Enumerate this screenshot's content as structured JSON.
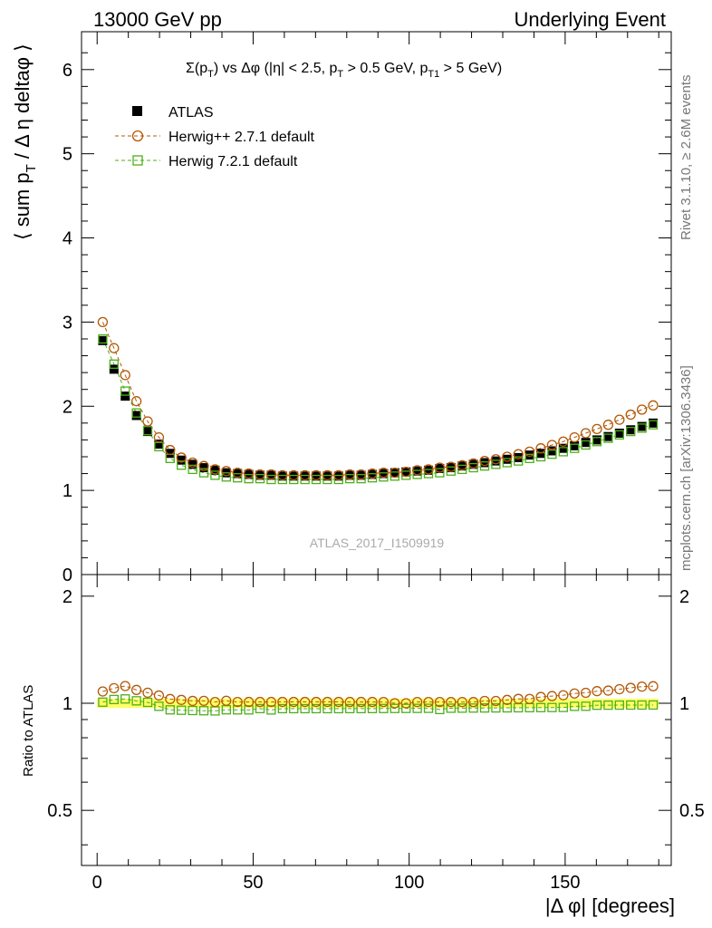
{
  "header": {
    "left": "13000 GeV pp",
    "right": "Underlying Event"
  },
  "side_labels": {
    "rivet": "Rivet 3.1.10, ≥ 2.6M events",
    "mcplots": "mcplots.cern.ch [arXiv:1306.3436]"
  },
  "watermark": "ATLAS_2017_I1509919",
  "chart_data": {
    "type": "scatter",
    "title_parts": {
      "sigma": "Σ(p",
      "sub_t": "T",
      "mid": ") vs Δφ (|η| < 2.5, p",
      "sub_t2": "T",
      "mid2": " > 0.5 GeV, p",
      "sub_t1": "T1",
      "end": " > 5 GeV)"
    },
    "ylabel_parts": {
      "a": "⟨ sum p",
      "sub": "T",
      "b": " / Δ η deltaφ ⟩"
    },
    "xlabel": "|Δ φ| [degrees]",
    "ratio_ylabel": "Ratio to ATLAS",
    "xlim": [
      -5,
      184
    ],
    "ylim_main": [
      0,
      6.45
    ],
    "ylim_ratio": [
      0.35,
      2.3
    ],
    "main_yticks": [
      "0",
      "1",
      "2",
      "3",
      "4",
      "5",
      "6"
    ],
    "main_ytick_values": [
      0,
      1,
      2,
      3,
      4,
      5,
      6
    ],
    "ratio_yticks": [
      "0.5",
      "1",
      "2"
    ],
    "ratio_ytick_values": [
      0.5,
      1,
      2
    ],
    "xticks": [
      "0",
      "50",
      "100",
      "150"
    ],
    "xtick_values": [
      0,
      50,
      100,
      150
    ],
    "legend": [
      {
        "label": "ATLAS",
        "marker": "square-filled",
        "color": "#000000"
      },
      {
        "label": "Herwig++ 2.7.1 default",
        "marker": "circle-open",
        "color": "#b35806"
      },
      {
        "label": "Herwig 7.2.1 default",
        "marker": "square-open",
        "color": "#4daf1a"
      }
    ],
    "x": [
      1.8,
      5.4,
      9.0,
      12.6,
      16.2,
      19.8,
      23.4,
      27.0,
      30.6,
      34.2,
      37.8,
      41.4,
      45.0,
      48.6,
      52.2,
      55.8,
      59.4,
      63.0,
      66.6,
      70.2,
      73.8,
      77.4,
      81.0,
      84.6,
      88.2,
      91.8,
      95.4,
      99.0,
      102.6,
      106.2,
      109.8,
      113.4,
      117.0,
      120.6,
      124.2,
      127.8,
      131.4,
      135.0,
      138.6,
      142.2,
      145.8,
      149.4,
      153.0,
      156.6,
      160.2,
      163.8,
      167.4,
      171.0,
      174.6,
      178.2
    ],
    "series": [
      {
        "name": "ATLAS",
        "color": "#000000",
        "values": [
          2.78,
          2.44,
          2.12,
          1.89,
          1.7,
          1.55,
          1.44,
          1.36,
          1.31,
          1.27,
          1.24,
          1.21,
          1.2,
          1.19,
          1.18,
          1.18,
          1.17,
          1.17,
          1.17,
          1.17,
          1.17,
          1.17,
          1.18,
          1.18,
          1.19,
          1.2,
          1.21,
          1.22,
          1.23,
          1.24,
          1.26,
          1.27,
          1.29,
          1.31,
          1.33,
          1.35,
          1.37,
          1.39,
          1.42,
          1.44,
          1.47,
          1.5,
          1.53,
          1.57,
          1.6,
          1.64,
          1.68,
          1.72,
          1.76,
          1.8
        ]
      },
      {
        "name": "Herwig++ 2.7.1 default",
        "color": "#b35806",
        "values": [
          3.0,
          2.69,
          2.37,
          2.06,
          1.82,
          1.63,
          1.48,
          1.39,
          1.33,
          1.29,
          1.25,
          1.23,
          1.21,
          1.2,
          1.19,
          1.19,
          1.18,
          1.18,
          1.18,
          1.18,
          1.18,
          1.18,
          1.19,
          1.19,
          1.2,
          1.21,
          1.21,
          1.22,
          1.24,
          1.25,
          1.27,
          1.28,
          1.3,
          1.32,
          1.35,
          1.37,
          1.4,
          1.43,
          1.46,
          1.5,
          1.54,
          1.58,
          1.63,
          1.68,
          1.73,
          1.78,
          1.84,
          1.9,
          1.96,
          2.01
        ]
      },
      {
        "name": "Herwig 7.2.1 default",
        "color": "#4daf1a",
        "values": [
          2.8,
          2.5,
          2.18,
          1.92,
          1.71,
          1.52,
          1.38,
          1.3,
          1.25,
          1.21,
          1.18,
          1.16,
          1.15,
          1.14,
          1.14,
          1.13,
          1.13,
          1.13,
          1.13,
          1.13,
          1.13,
          1.13,
          1.14,
          1.14,
          1.15,
          1.16,
          1.17,
          1.18,
          1.19,
          1.2,
          1.21,
          1.23,
          1.25,
          1.27,
          1.29,
          1.31,
          1.33,
          1.35,
          1.38,
          1.4,
          1.43,
          1.46,
          1.5,
          1.54,
          1.58,
          1.62,
          1.66,
          1.7,
          1.74,
          1.78
        ]
      }
    ]
  }
}
